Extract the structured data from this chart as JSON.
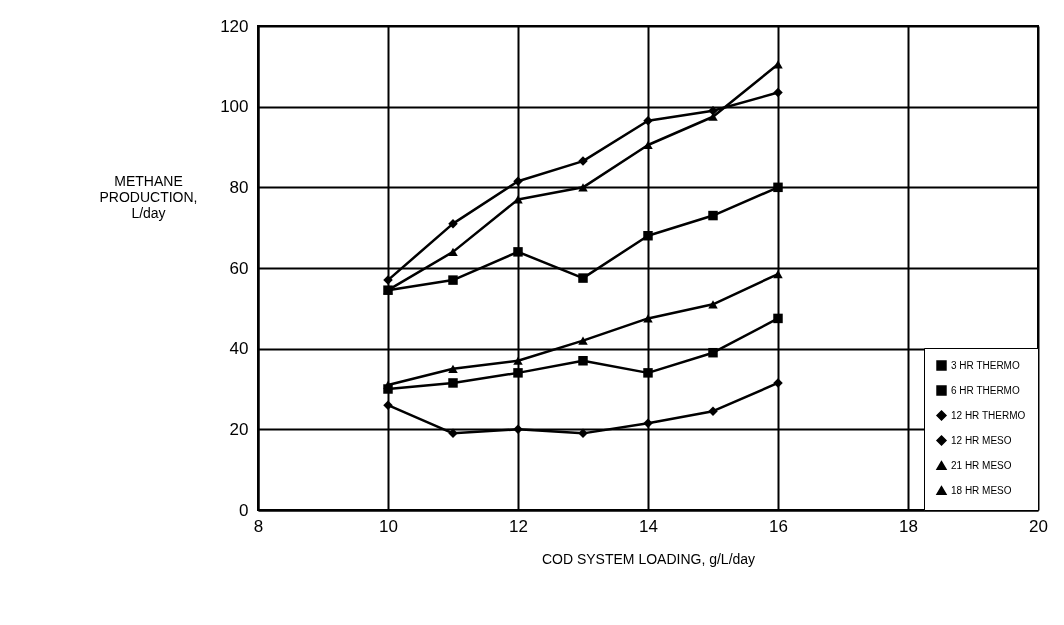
{
  "chart_data": {
    "type": "line",
    "xlabel": "COD SYSTEM LOADING, g/L/day",
    "ylabel": "METHANE\nPRODUCTION,\nL/day",
    "x": [
      10,
      11,
      12,
      13,
      14,
      15,
      16
    ],
    "xlim": [
      8,
      20
    ],
    "xticks": [
      8,
      10,
      12,
      14,
      16,
      18,
      20
    ],
    "ylim": [
      0,
      120
    ],
    "yticks": [
      0,
      20,
      40,
      60,
      80,
      100,
      120
    ],
    "grid": true,
    "legend": "bottom right",
    "line_style": "solid",
    "series": [
      {
        "name": "3 HR THERMO",
        "color": "#000000",
        "marker": "square",
        "values": [
          30,
          31.5,
          34,
          37,
          34,
          39,
          47.5
        ]
      },
      {
        "name": "6 HR THERMO",
        "color": "#000000",
        "marker": "square",
        "values": [
          54.5,
          57,
          64,
          57.5,
          68,
          73,
          80
        ]
      },
      {
        "name": "12 HR THERMO",
        "color": "#000000",
        "marker": "diamond",
        "values": [
          57,
          71,
          81.5,
          86.5,
          96.5,
          99,
          103.5
        ]
      },
      {
        "name": "12 HR MESO",
        "color": "#000000",
        "marker": "diamond",
        "values": [
          26,
          19,
          20,
          19,
          21.5,
          24.5,
          31.5
        ]
      },
      {
        "name": "21 HR MESO",
        "color": "#000000",
        "marker": "triangle",
        "values": [
          54.5,
          64,
          77,
          80,
          90.5,
          97.5,
          110.5
        ]
      },
      {
        "name": "18 HR MESO",
        "color": "#000000",
        "marker": "triangle",
        "values": [
          31,
          35,
          37,
          42,
          47.5,
          51,
          58.5
        ]
      }
    ]
  }
}
